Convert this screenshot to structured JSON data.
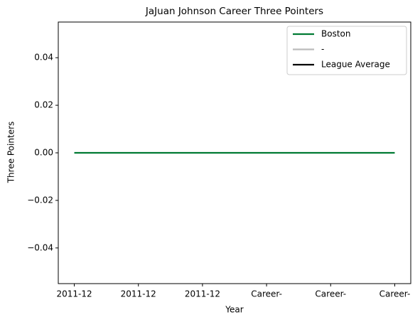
{
  "chart_data": {
    "type": "line",
    "title": "JaJuan Johnson Career Three Pointers",
    "x_label": "Year",
    "y_label": "Three Pointers",
    "categories": [
      "2011-12",
      "2011-12",
      "2011-12",
      "Career-",
      "Career-",
      "Career-"
    ],
    "series": [
      {
        "name": "Boston",
        "color": "#007a33",
        "values": [
          0,
          0,
          0,
          0,
          0,
          0
        ]
      },
      {
        "name": "-",
        "color": "#bbbbbb",
        "values": [
          null,
          null,
          null,
          null,
          null,
          null
        ]
      },
      {
        "name": "League Average",
        "color": "#000000",
        "values": [
          null,
          null,
          null,
          null,
          null,
          null
        ]
      }
    ],
    "ylim": [
      -0.055,
      0.055
    ],
    "yticks": [
      {
        "value": -0.04,
        "label": "−0.04"
      },
      {
        "value": -0.02,
        "label": "−0.02"
      },
      {
        "value": 0,
        "label": "0.00"
      },
      0.02,
      0.04
    ],
    "legend": "upper right",
    "grid": false
  }
}
